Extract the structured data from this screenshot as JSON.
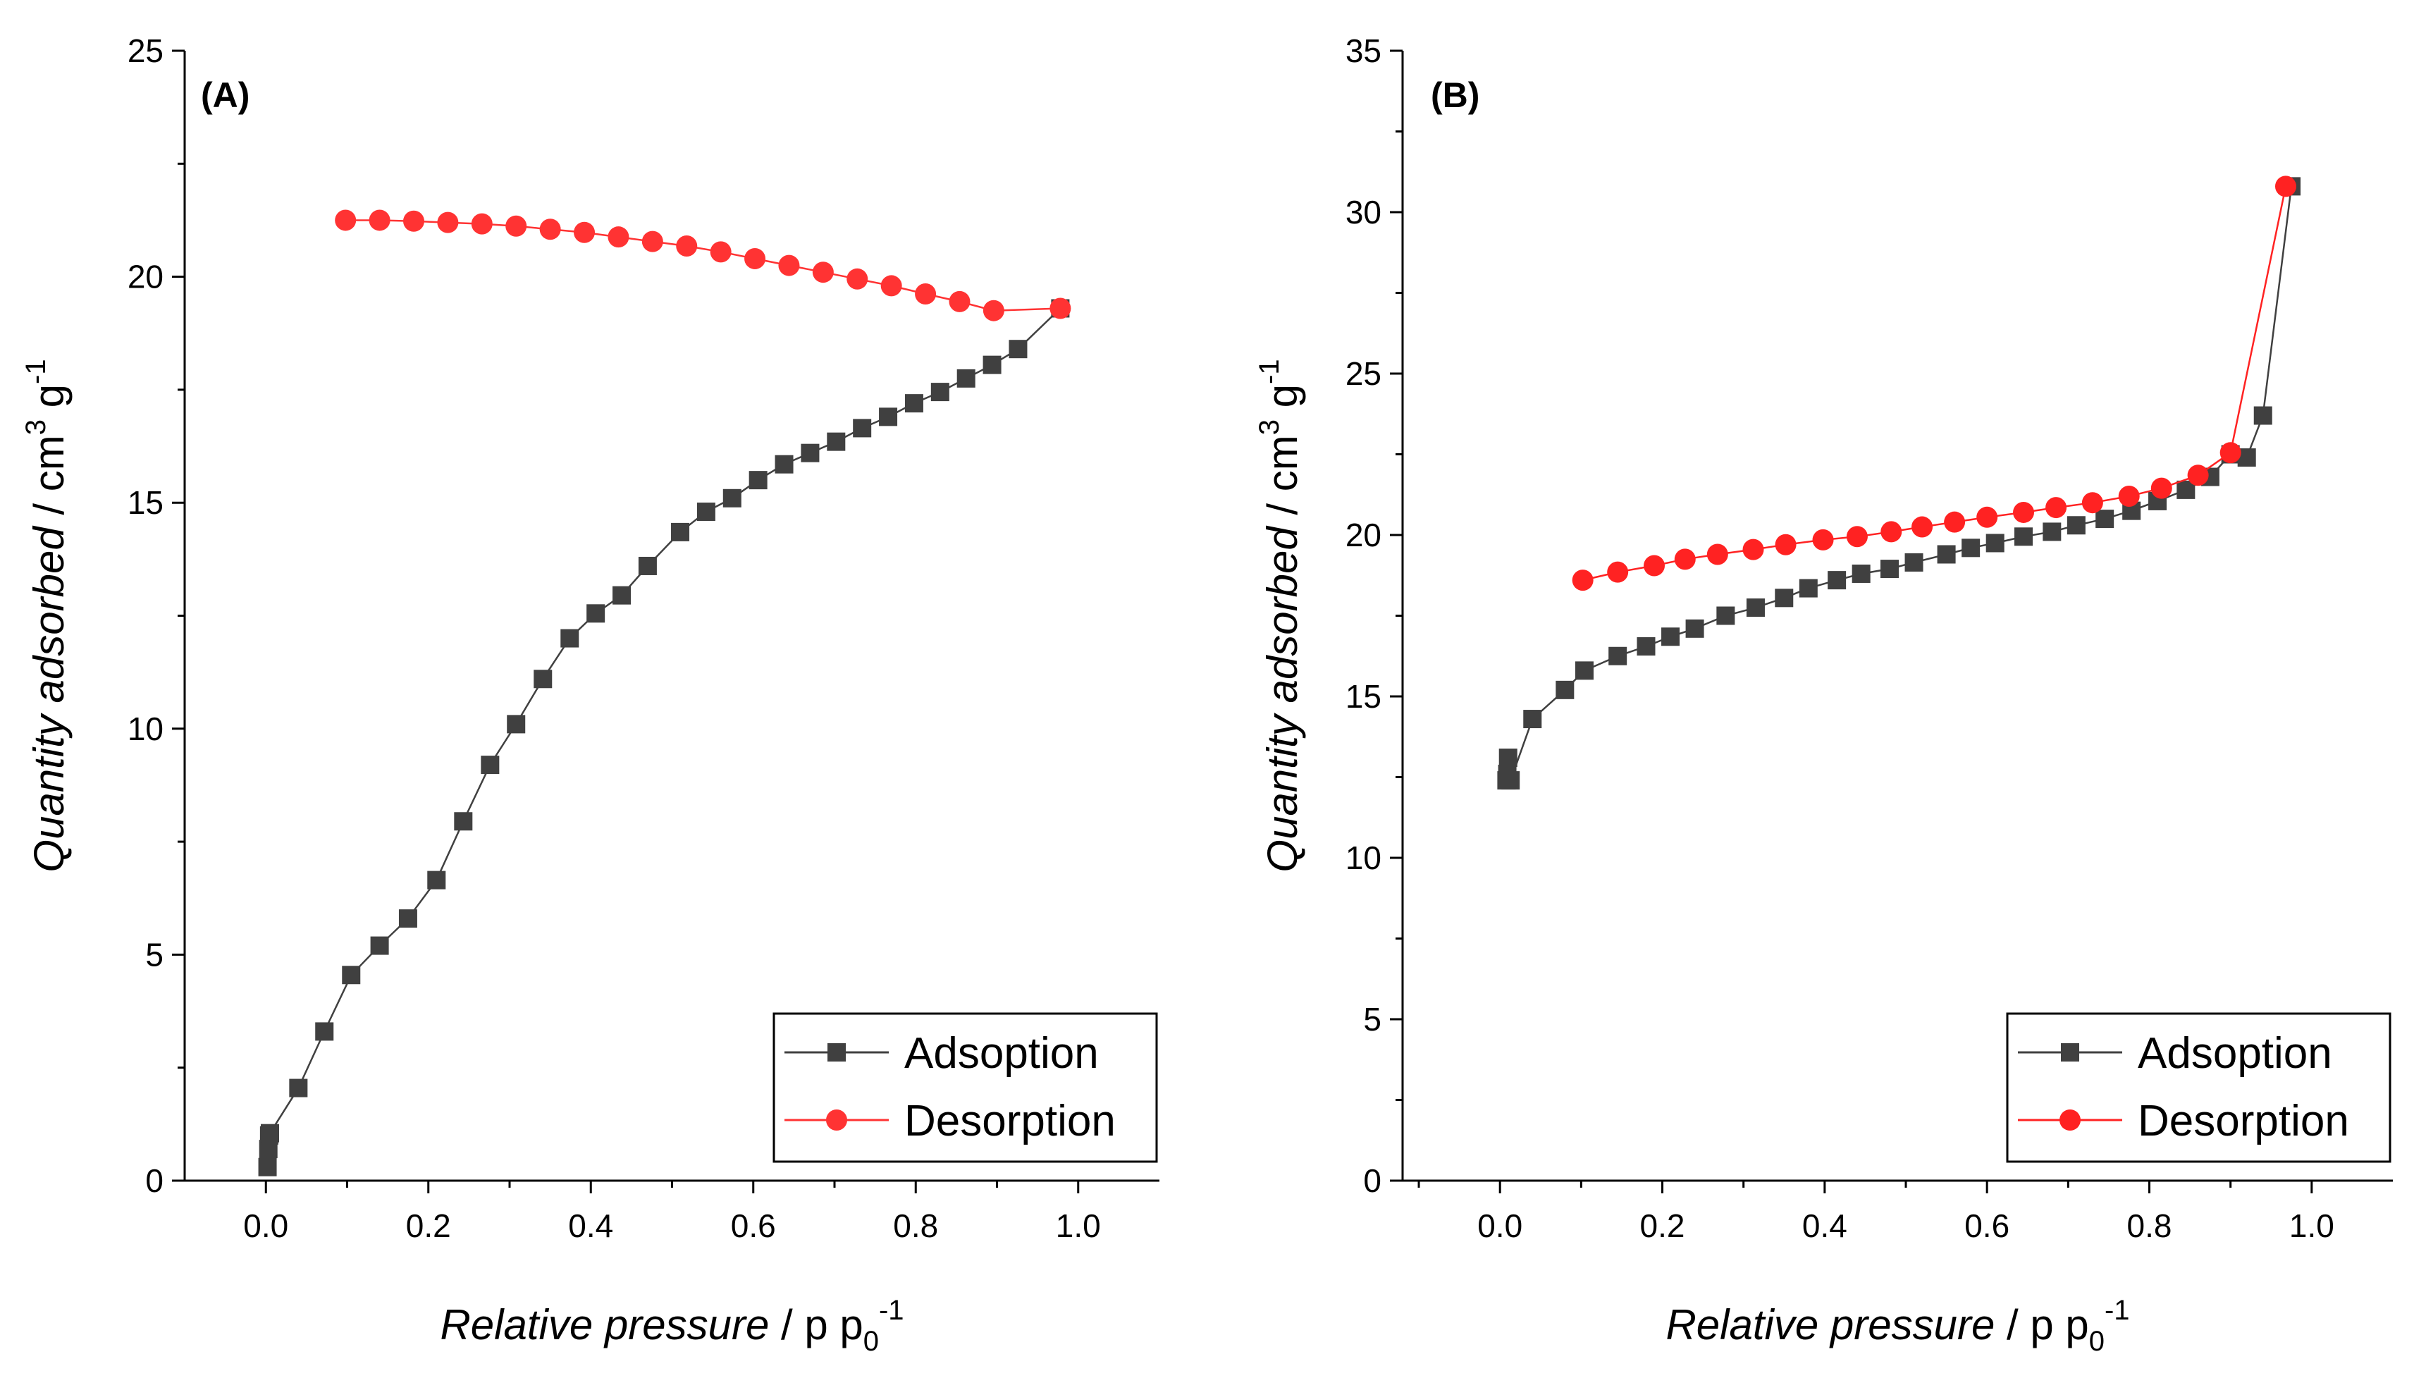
{
  "chart_data": [
    {
      "type": "scatter",
      "panel_label": "(A)",
      "xlabel_italic": "Relative pressure",
      "xlabel_unit_a": " / p p",
      "xlabel_sub": "0",
      "xlabel_sup": "-1",
      "ylabel_italic": "Quantity adsorbed",
      "ylabel_unit_a": " / cm",
      "ylabel_sup1": "3",
      "ylabel_unit_b": " g",
      "ylabel_sup2": "-1",
      "xlim": [
        -0.1,
        1.1
      ],
      "ylim": [
        0,
        25
      ],
      "xticks": [
        0.0,
        0.2,
        0.4,
        0.6,
        0.8,
        1.0
      ],
      "xtick_labels": [
        "0.0",
        "0.2",
        "0.4",
        "0.6",
        "0.8",
        "1.0"
      ],
      "yticks": [
        0,
        5,
        10,
        15,
        20,
        25
      ],
      "ytick_labels": [
        "0",
        "5",
        "10",
        "15",
        "20",
        "25"
      ],
      "legend_position": "bottom-right",
      "series": [
        {
          "name": "Adsoption",
          "color": "#404040",
          "line_color": "#404040",
          "marker": "square",
          "x": [
            0.002,
            0.003,
            0.004,
            0.005,
            0.04,
            0.072,
            0.105,
            0.14,
            0.175,
            0.21,
            0.243,
            0.276,
            0.308,
            0.341,
            0.374,
            0.406,
            0.438,
            0.47,
            0.51,
            0.542,
            0.574,
            0.606,
            0.638,
            0.67,
            0.702,
            0.734,
            0.766,
            0.798,
            0.83,
            0.862,
            0.894,
            0.926,
            0.978
          ],
          "y": [
            0.3,
            0.7,
            1.0,
            1.05,
            2.05,
            3.3,
            4.55,
            5.2,
            5.8,
            6.65,
            7.95,
            9.2,
            10.1,
            11.1,
            12.0,
            12.55,
            12.95,
            13.6,
            14.35,
            14.8,
            15.1,
            15.5,
            15.85,
            16.1,
            16.35,
            16.65,
            16.9,
            17.2,
            17.45,
            17.75,
            18.05,
            18.4,
            19.3
          ]
        },
        {
          "name": "Desorption",
          "color": "#ff3333",
          "line_color": "#ff3333",
          "marker": "circle",
          "x": [
            0.098,
            0.14,
            0.182,
            0.224,
            0.266,
            0.308,
            0.35,
            0.392,
            0.434,
            0.476,
            0.518,
            0.56,
            0.602,
            0.644,
            0.686,
            0.728,
            0.77,
            0.812,
            0.854,
            0.896,
            0.978
          ],
          "y": [
            21.25,
            21.25,
            21.23,
            21.2,
            21.17,
            21.12,
            21.05,
            20.98,
            20.88,
            20.78,
            20.68,
            20.55,
            20.4,
            20.25,
            20.1,
            19.95,
            19.8,
            19.62,
            19.45,
            19.25,
            19.3
          ]
        }
      ]
    },
    {
      "type": "scatter",
      "panel_label": "(B)",
      "xlabel_italic": "Relative pressure",
      "xlabel_unit_a": " / p p",
      "xlabel_sub": "0",
      "xlabel_sup": "-1",
      "ylabel_italic": "Quantity adsorbed",
      "ylabel_unit_a": " / cm",
      "ylabel_sup1": "3",
      "ylabel_unit_b": " g",
      "ylabel_sup2": "-1",
      "xlim": [
        -0.12,
        1.1
      ],
      "ylim": [
        0,
        35
      ],
      "xticks": [
        0.0,
        0.2,
        0.4,
        0.6,
        0.8,
        1.0
      ],
      "xtick_labels": [
        "0.0",
        "0.2",
        "0.4",
        "0.6",
        "0.8",
        "1.0"
      ],
      "yticks": [
        0,
        5,
        10,
        15,
        20,
        25,
        30,
        35
      ],
      "ytick_labels": [
        "0",
        "5",
        "10",
        "15",
        "20",
        "25",
        "30",
        "35"
      ],
      "legend_position": "bottom-right",
      "series": [
        {
          "name": "Adsoption",
          "color": "#404040",
          "line_color": "#404040",
          "marker": "square",
          "x": [
            0.008,
            0.009,
            0.01,
            0.013,
            0.04,
            0.08,
            0.104,
            0.145,
            0.18,
            0.21,
            0.24,
            0.278,
            0.315,
            0.35,
            0.38,
            0.415,
            0.445,
            0.48,
            0.51,
            0.55,
            0.58,
            0.61,
            0.645,
            0.68,
            0.71,
            0.745,
            0.778,
            0.81,
            0.845,
            0.875,
            0.9,
            0.92,
            0.94,
            0.975
          ],
          "y": [
            12.4,
            12.6,
            13.1,
            12.4,
            14.3,
            15.2,
            15.8,
            16.25,
            16.55,
            16.85,
            17.1,
            17.5,
            17.75,
            18.05,
            18.35,
            18.6,
            18.8,
            18.95,
            19.15,
            19.4,
            19.6,
            19.75,
            19.95,
            20.1,
            20.3,
            20.5,
            20.75,
            21.05,
            21.4,
            21.8,
            22.5,
            22.4,
            23.7,
            30.8
          ]
        },
        {
          "name": "Desorption",
          "color": "#ff2222",
          "line_color": "#ff2222",
          "marker": "circle",
          "x": [
            0.102,
            0.145,
            0.19,
            0.228,
            0.268,
            0.312,
            0.352,
            0.398,
            0.44,
            0.482,
            0.52,
            0.56,
            0.6,
            0.645,
            0.685,
            0.73,
            0.775,
            0.815,
            0.86,
            0.9,
            0.968
          ],
          "y": [
            18.6,
            18.85,
            19.05,
            19.25,
            19.4,
            19.55,
            19.7,
            19.85,
            19.95,
            20.1,
            20.25,
            20.4,
            20.55,
            20.7,
            20.85,
            21.0,
            21.2,
            21.45,
            21.85,
            22.55,
            30.8
          ]
        }
      ]
    }
  ]
}
